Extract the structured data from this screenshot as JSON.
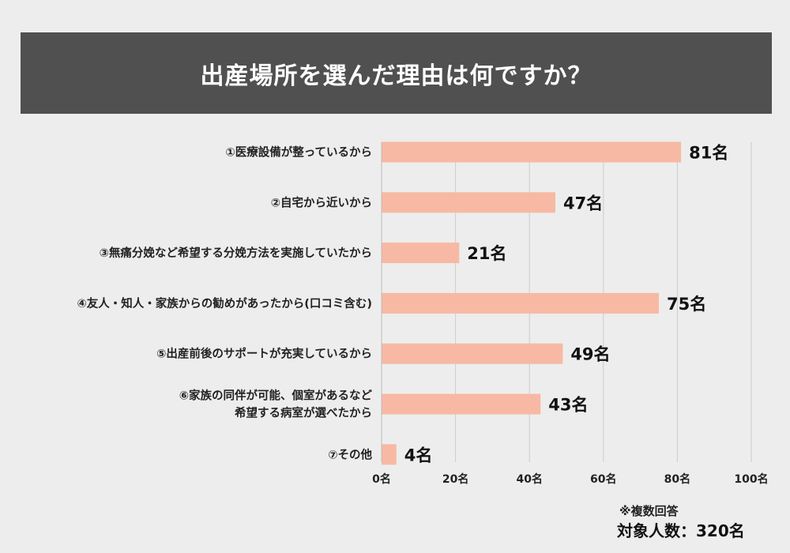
{
  "title": "出産場所を選んだ理由は何ですか？",
  "note": "※複数回答",
  "respondents": "対象人数：320名",
  "colors": {
    "bar": "#f7b9a3",
    "grid": "#cccccc",
    "title_bg": "#505050"
  },
  "chart_data": {
    "type": "bar",
    "orientation": "horizontal",
    "unit": "名",
    "categories": [
      [
        "①医療設備が整っているから"
      ],
      [
        "②自宅から近いから"
      ],
      [
        "③無痛分娩など希望する分娩方法を実施していたから"
      ],
      [
        "④友人・知人・家族からの勧めがあったから(口コミ含む)"
      ],
      [
        "⑤出産前後のサポートが充実しているから"
      ],
      [
        "⑥家族の同伴が可能、個室があるなど",
        "希望する病室が選べたから"
      ],
      [
        "⑦その他"
      ]
    ],
    "values": [
      81,
      47,
      21,
      75,
      49,
      43,
      4
    ],
    "value_labels": [
      "81名",
      "47名",
      "21名",
      "75名",
      "49名",
      "43名",
      "4名"
    ],
    "xlim": [
      0,
      100
    ],
    "xticks": [
      0,
      20,
      40,
      60,
      80,
      100
    ],
    "xtick_labels": [
      "0名",
      "20名",
      "40名",
      "60名",
      "80名",
      "100名"
    ],
    "grid": true,
    "legend": "none"
  }
}
